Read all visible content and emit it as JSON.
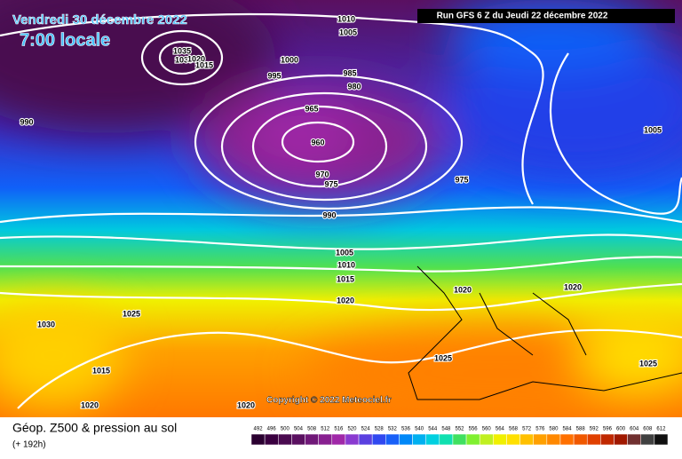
{
  "header": {
    "date": "Vendredi 30 décembre 2022",
    "time": "7:00 locale",
    "run": "Run GFS 6 Z du Jeudi 22 décembre 2022"
  },
  "isobar_labels": [
    "1010",
    "1005",
    "1035",
    "1030",
    "1020",
    "1015",
    "1000",
    "995",
    "985",
    "980",
    "990",
    "965",
    "960",
    "970",
    "975",
    "975",
    "990",
    "1005",
    "1010",
    "1015",
    "1020",
    "1020",
    "1020",
    "1025",
    "1030",
    "1015",
    "1025",
    "1025",
    "1020",
    "1020",
    "1005"
  ],
  "copyright": "Copyright © 2022 Meteociel.fr",
  "footer": {
    "title": "Géop. Z500 & pression au sol",
    "subtitle": "(+ 192h)"
  },
  "legend": {
    "ticks": [
      492,
      496,
      500,
      504,
      508,
      512,
      516,
      520,
      524,
      528,
      532,
      536,
      540,
      544,
      548,
      552,
      556,
      560,
      564,
      568,
      572,
      576,
      580,
      584,
      588,
      592,
      596,
      600,
      604,
      608,
      612
    ],
    "colors": [
      "#2a0030",
      "#3a0040",
      "#4a0a50",
      "#5a1060",
      "#701878",
      "#882090",
      "#a028a8",
      "#8a3ad0",
      "#5a40e0",
      "#3048f0",
      "#1860f8",
      "#0088f8",
      "#00b0f0",
      "#00d0e0",
      "#10e0b0",
      "#40e060",
      "#80f030",
      "#c0f020",
      "#f0f000",
      "#ffe000",
      "#ffc000",
      "#ffa000",
      "#ff8800",
      "#ff7000",
      "#f05800",
      "#e04000",
      "#c02800",
      "#a01800",
      "#703030",
      "#404040",
      "#101010"
    ]
  }
}
